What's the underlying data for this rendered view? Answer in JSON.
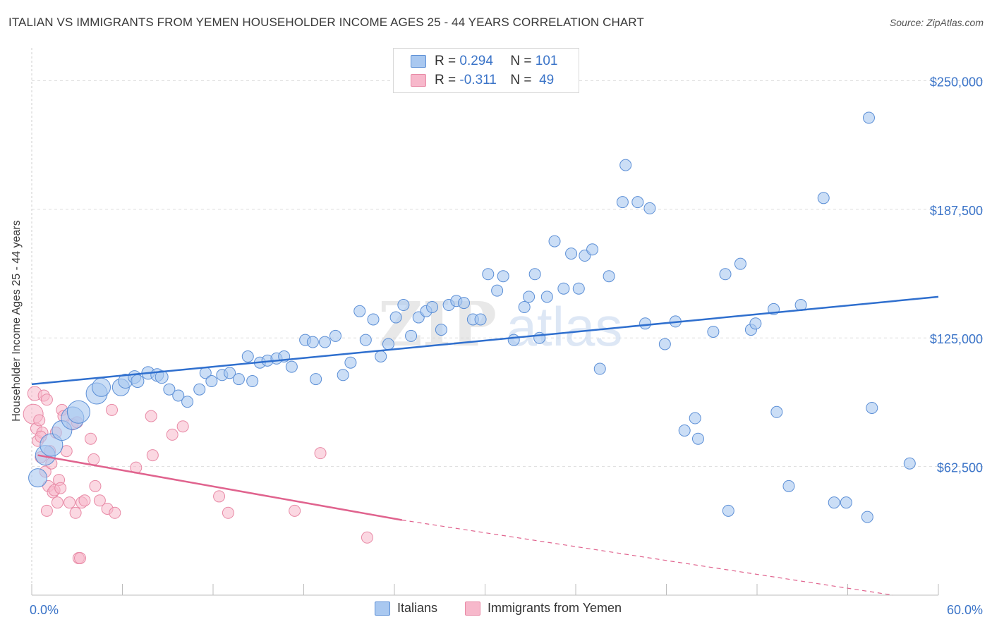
{
  "title": "ITALIAN VS IMMIGRANTS FROM YEMEN HOUSEHOLDER INCOME AGES 25 - 44 YEARS CORRELATION CHART",
  "source": "Source: ZipAtlas.com",
  "watermark": {
    "zip": "ZIP",
    "atlas": "atlas"
  },
  "legend_top": {
    "rows": [
      {
        "r_label": "R =",
        "r_value": "0.294",
        "n_label": "N =",
        "n_value": "101",
        "color": "#a9c8f0"
      },
      {
        "r_label": "R =",
        "r_value": "-0.311",
        "n_label": "N =",
        "n_value": "49",
        "color": "#f7b8cb"
      }
    ]
  },
  "legend_bottom": {
    "italians": "Italians",
    "yemen": "Immigrants from Yemen"
  },
  "colors": {
    "blue_fill": "#a9c8f0",
    "blue_stroke": "#5c8fd6",
    "blue_line": "#2f6fce",
    "pink_fill": "#f7b8cb",
    "pink_stroke": "#e88aa6",
    "pink_line": "#e0638e",
    "value_text": "#3b74c8",
    "grid": "#dddddd"
  },
  "chart_data": {
    "type": "scatter",
    "title": "ITALIAN VS IMMIGRANTS FROM YEMEN HOUSEHOLDER INCOME AGES 25 - 44 YEARS CORRELATION CHART",
    "xlabel": "",
    "ylabel": "Householder Income Ages 25 - 44 years",
    "xlim": [
      0,
      60
    ],
    "ylim": [
      0,
      262500
    ],
    "x_tick_labels": [
      "0.0%",
      "60.0%"
    ],
    "y_ticks": [
      62500,
      125000,
      187500,
      250000
    ],
    "y_tick_labels": [
      "$62,500",
      "$125,000",
      "$187,500",
      "$250,000"
    ],
    "grid": true,
    "legend": "top-center",
    "series": [
      {
        "name": "Italians",
        "color": "#a9c8f0",
        "trend": {
          "x": [
            0,
            60
          ],
          "y": [
            102500,
            145000
          ]
        },
        "points": [
          [
            0.4,
            57000,
            13
          ],
          [
            0.9,
            68000,
            14
          ],
          [
            1.3,
            73000,
            16
          ],
          [
            2.0,
            80000,
            14
          ],
          [
            2.7,
            86000,
            16
          ],
          [
            3.1,
            89000,
            16
          ],
          [
            4.3,
            98000,
            15
          ],
          [
            4.6,
            101000,
            13
          ],
          [
            5.9,
            101000,
            12
          ],
          [
            6.2,
            104000,
            10
          ],
          [
            6.8,
            106000,
            9
          ],
          [
            7.0,
            104000,
            9
          ],
          [
            7.7,
            108000,
            9
          ],
          [
            8.3,
            107000,
            9
          ],
          [
            8.6,
            106000,
            9
          ],
          [
            9.1,
            100000,
            8
          ],
          [
            9.7,
            97000,
            8
          ],
          [
            10.3,
            94000,
            8
          ],
          [
            11.1,
            100000,
            8
          ],
          [
            11.5,
            108000,
            8
          ],
          [
            11.9,
            104000,
            8
          ],
          [
            12.6,
            107000,
            8
          ],
          [
            13.1,
            108000,
            8
          ],
          [
            13.7,
            105000,
            8
          ],
          [
            14.3,
            116000,
            8
          ],
          [
            14.6,
            104000,
            8
          ],
          [
            15.1,
            113000,
            8
          ],
          [
            15.6,
            114000,
            8
          ],
          [
            16.2,
            115000,
            8
          ],
          [
            16.7,
            116000,
            8
          ],
          [
            17.2,
            111000,
            8
          ],
          [
            18.1,
            124000,
            8
          ],
          [
            18.6,
            123000,
            8
          ],
          [
            18.8,
            105000,
            8
          ],
          [
            19.4,
            123000,
            8
          ],
          [
            20.1,
            126000,
            8
          ],
          [
            20.6,
            107000,
            8
          ],
          [
            21.1,
            113000,
            8
          ],
          [
            21.7,
            138000,
            8
          ],
          [
            22.1,
            124000,
            8
          ],
          [
            22.6,
            134000,
            8
          ],
          [
            23.1,
            116000,
            8
          ],
          [
            23.6,
            122000,
            8
          ],
          [
            24.1,
            135000,
            8
          ],
          [
            24.6,
            141000,
            8
          ],
          [
            25.1,
            126000,
            8
          ],
          [
            25.6,
            135000,
            8
          ],
          [
            26.1,
            138000,
            8
          ],
          [
            26.5,
            140000,
            8
          ],
          [
            27.1,
            129000,
            8
          ],
          [
            27.6,
            141000,
            8
          ],
          [
            28.1,
            143000,
            8
          ],
          [
            28.6,
            142000,
            8
          ],
          [
            29.2,
            134000,
            8
          ],
          [
            29.7,
            134000,
            8
          ],
          [
            30.2,
            156000,
            8
          ],
          [
            30.8,
            148000,
            8
          ],
          [
            31.2,
            155000,
            8
          ],
          [
            31.9,
            124000,
            8
          ],
          [
            32.6,
            140000,
            8
          ],
          [
            32.9,
            145000,
            8
          ],
          [
            33.3,
            156000,
            8
          ],
          [
            34.1,
            145000,
            8
          ],
          [
            34.6,
            172000,
            8
          ],
          [
            35.2,
            149000,
            8
          ],
          [
            35.7,
            166000,
            8
          ],
          [
            36.2,
            149000,
            8
          ],
          [
            36.6,
            165000,
            8
          ],
          [
            37.1,
            168000,
            8
          ],
          [
            37.6,
            110000,
            8
          ],
          [
            38.2,
            155000,
            8
          ],
          [
            39.1,
            191000,
            8
          ],
          [
            39.3,
            209000,
            8
          ],
          [
            40.1,
            191000,
            8
          ],
          [
            40.6,
            132000,
            8
          ],
          [
            40.9,
            188000,
            8
          ],
          [
            41.9,
            122000,
            8
          ],
          [
            42.6,
            133000,
            8
          ],
          [
            43.2,
            80000,
            8
          ],
          [
            43.9,
            86000,
            8
          ],
          [
            44.1,
            76000,
            8
          ],
          [
            45.1,
            128000,
            8
          ],
          [
            45.9,
            156000,
            8
          ],
          [
            46.1,
            41000,
            8
          ],
          [
            46.9,
            161000,
            8
          ],
          [
            47.6,
            129000,
            8
          ],
          [
            47.9,
            132000,
            8
          ],
          [
            49.1,
            139000,
            8
          ],
          [
            49.3,
            89000,
            8
          ],
          [
            50.1,
            53000,
            8
          ],
          [
            50.9,
            141000,
            8
          ],
          [
            52.4,
            193000,
            8
          ],
          [
            53.1,
            45000,
            8
          ],
          [
            53.9,
            45000,
            8
          ],
          [
            55.3,
            38000,
            8
          ],
          [
            55.6,
            91000,
            8
          ],
          [
            55.4,
            232000,
            8
          ],
          [
            58.1,
            64000,
            8
          ],
          [
            33.6,
            125000,
            8
          ]
        ]
      },
      {
        "name": "Immigrants from Yemen",
        "color": "#f7b8cb",
        "trend": {
          "x": [
            0.4,
            24.5
          ],
          "y": [
            68000,
            36500
          ]
        },
        "trend_extension": {
          "x": [
            24.5,
            57
          ],
          "y": [
            36500,
            0
          ]
        },
        "points": [
          [
            0.1,
            88000,
            14
          ],
          [
            0.2,
            98000,
            10
          ],
          [
            0.3,
            81000,
            8
          ],
          [
            0.4,
            75000,
            8
          ],
          [
            0.5,
            85000,
            8
          ],
          [
            0.6,
            67000,
            8
          ],
          [
            0.7,
            79000,
            8
          ],
          [
            0.8,
            97000,
            8
          ],
          [
            0.9,
            60000,
            8
          ],
          [
            1.0,
            95000,
            8
          ],
          [
            1.1,
            53000,
            8
          ],
          [
            1.2,
            70000,
            8
          ],
          [
            1.3,
            64000,
            8
          ],
          [
            1.4,
            50000,
            8
          ],
          [
            1.5,
            51000,
            8
          ],
          [
            1.6,
            79000,
            8
          ],
          [
            1.7,
            45000,
            8
          ],
          [
            1.8,
            56000,
            8
          ],
          [
            1.9,
            52000,
            8
          ],
          [
            2.0,
            90000,
            8
          ],
          [
            2.1,
            87000,
            8
          ],
          [
            2.3,
            70000,
            8
          ],
          [
            2.5,
            45000,
            8
          ],
          [
            2.7,
            83000,
            8
          ],
          [
            2.9,
            40000,
            8
          ],
          [
            3.1,
            18000,
            8
          ],
          [
            3.2,
            18000,
            8
          ],
          [
            3.3,
            45000,
            8
          ],
          [
            3.5,
            46000,
            8
          ],
          [
            3.9,
            76000,
            8
          ],
          [
            4.1,
            66000,
            8
          ],
          [
            4.2,
            53000,
            8
          ],
          [
            4.5,
            46000,
            8
          ],
          [
            5.0,
            42000,
            8
          ],
          [
            5.3,
            90000,
            8
          ],
          [
            5.5,
            40000,
            8
          ],
          [
            6.9,
            62000,
            8
          ],
          [
            7.9,
            87000,
            8
          ],
          [
            8.0,
            68000,
            8
          ],
          [
            9.3,
            78000,
            8
          ],
          [
            10.0,
            82000,
            8
          ],
          [
            12.4,
            48000,
            8
          ],
          [
            13.0,
            40000,
            8
          ],
          [
            17.4,
            41000,
            8
          ],
          [
            19.1,
            69000,
            8
          ],
          [
            22.2,
            28000,
            8
          ],
          [
            3.0,
            84000,
            8
          ],
          [
            0.6,
            77000,
            8
          ],
          [
            1.0,
            41000,
            8
          ]
        ]
      }
    ]
  }
}
